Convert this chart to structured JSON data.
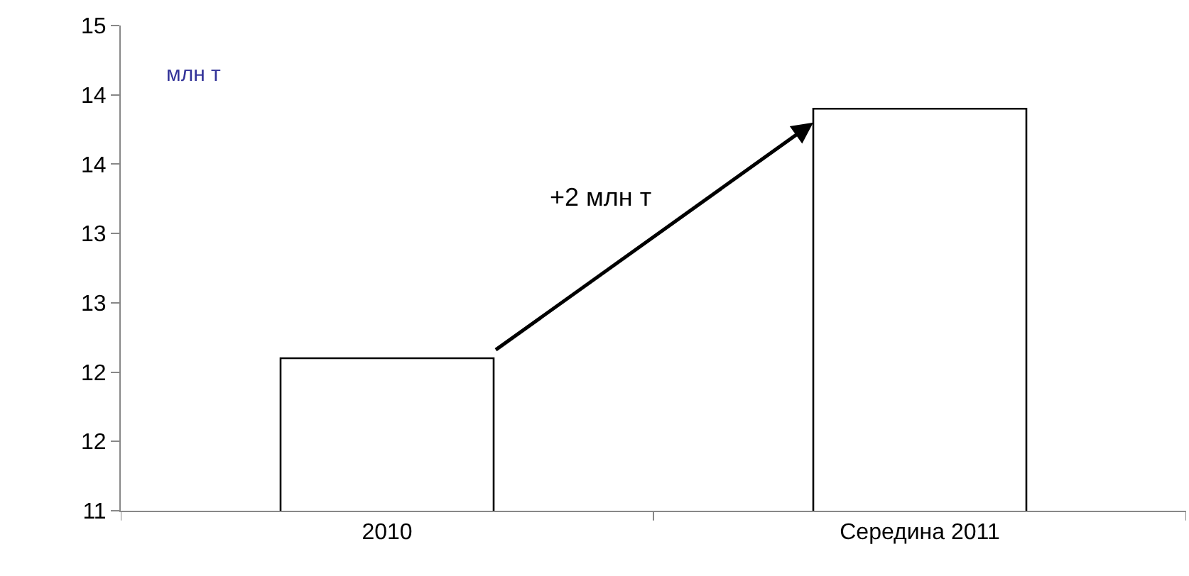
{
  "chart_data": {
    "type": "bar",
    "categories": [
      "2010",
      "Середина 2011"
    ],
    "values": [
      12.1,
      13.9
    ],
    "color": "#ffffff",
    "ylabel": "млн т",
    "annotations": [
      "+2 млн т"
    ],
    "ylim": [
      11,
      14.5
    ],
    "yticks": [
      11,
      {
        "value": 11.5,
        "label": "12"
      },
      12,
      {
        "value": 12.5,
        "label": "13"
      },
      13,
      {
        "value": 13.5,
        "label": "14"
      },
      14,
      {
        "value": 14.5,
        "label": "15"
      }
    ],
    "legend": false
  }
}
